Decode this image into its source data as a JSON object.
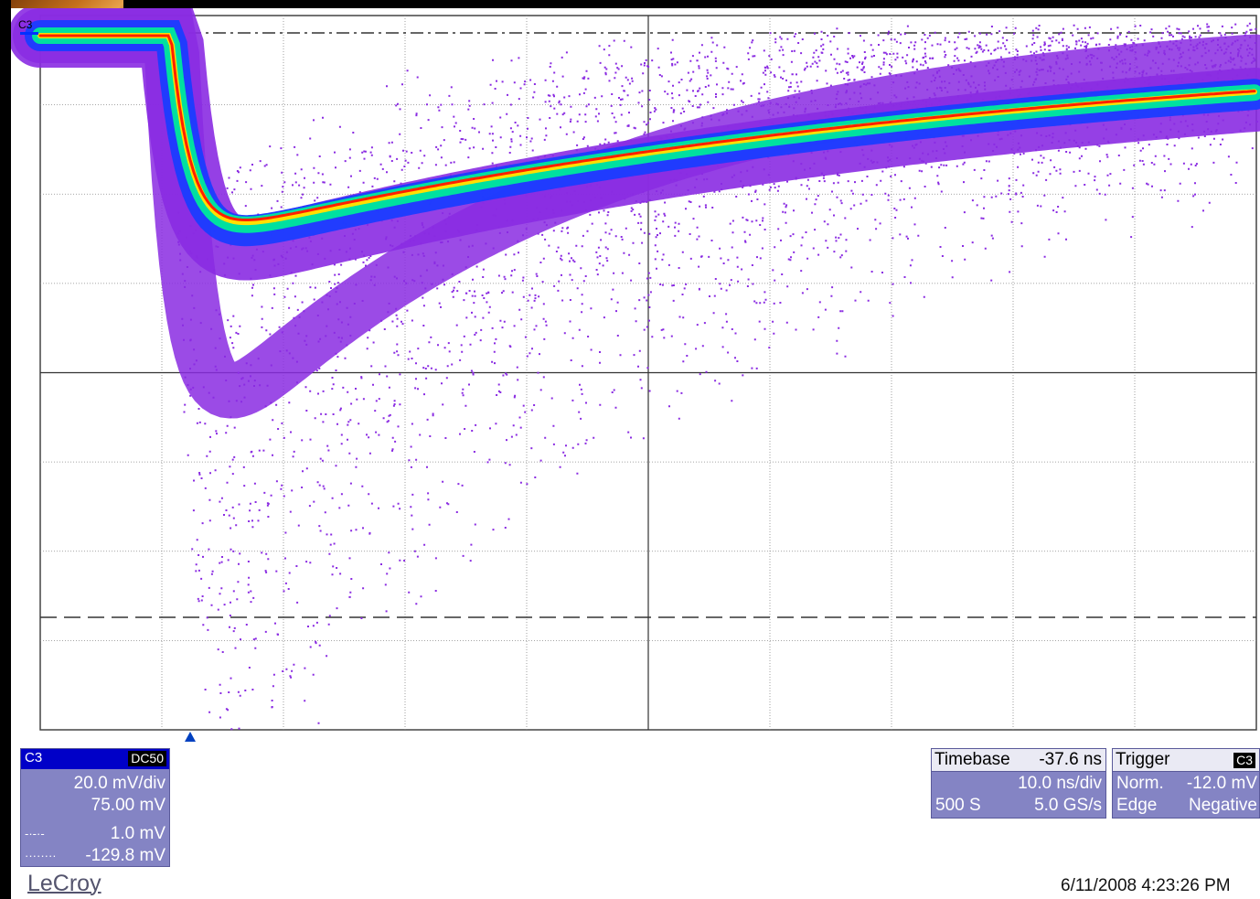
{
  "screen": {
    "channel_label": "C3",
    "colors": {
      "trace_low": "#8a2be2",
      "trace_mid": "#1a3cff",
      "trace_high": "#00e0a0",
      "trace_peak": "#ff2000",
      "panel_bg": "#8484c4",
      "panel_header": "#0000c8"
    }
  },
  "channel_panel": {
    "name": "C3",
    "coupling_badge": "DC50",
    "scale": "20.0 mV/div",
    "offset": "75.00 mV",
    "cursor1_symbol": "-·-·-",
    "cursor1_value": "1.0 mV",
    "cursor2_symbol": "········",
    "cursor2_value": "-129.8 mV"
  },
  "timebase_panel": {
    "title": "Timebase",
    "delay": "-37.6 ns",
    "scale": "10.0 ns/div",
    "samples": "500 S",
    "rate": "5.0 GS/s"
  },
  "trigger_panel": {
    "title": "Trigger",
    "source_badge": "C3",
    "mode": "Norm.",
    "level": "-12.0 mV",
    "type": "Edge",
    "slope": "Negative"
  },
  "footer": {
    "brand": "LeCroy",
    "datetime": "6/11/2008 4:23:26 PM"
  }
}
